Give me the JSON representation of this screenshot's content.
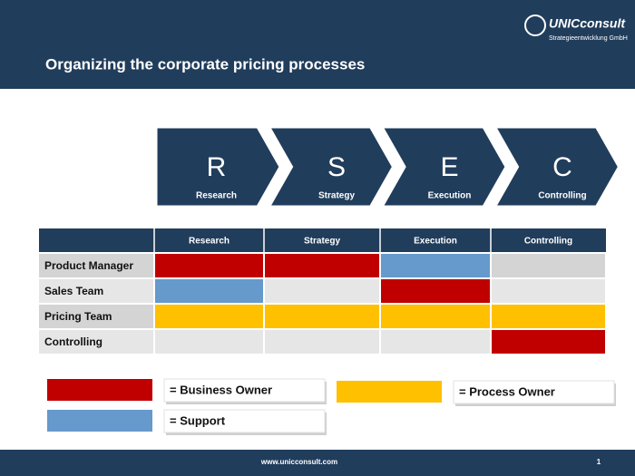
{
  "header": {
    "title": "Organizing the corporate pricing processes",
    "logo": "UNICconsult",
    "logo_subtitle": "Strategieentwicklung GmbH"
  },
  "process": [
    {
      "letter": "R",
      "label": "Research"
    },
    {
      "letter": "S",
      "label": "Strategy"
    },
    {
      "letter": "E",
      "label": "Execution"
    },
    {
      "letter": "C",
      "label": "Controlling"
    }
  ],
  "table": {
    "columns": [
      "Research",
      "Strategy",
      "Execution",
      "Controlling"
    ],
    "rows": [
      {
        "role": "Product Manager",
        "cells": [
          "#c00000",
          "#c00000",
          "#6699cc",
          null
        ]
      },
      {
        "role": "Sales Team",
        "cells": [
          "#6699cc",
          null,
          "#c00000",
          null
        ]
      },
      {
        "role": "Pricing Team",
        "cells": [
          "#ffc000",
          "#ffc000",
          "#ffc000",
          "#ffc000"
        ]
      },
      {
        "role": "Controlling",
        "cells": [
          null,
          null,
          null,
          "#c00000"
        ]
      }
    ]
  },
  "legend": [
    {
      "label": "= Business Owner",
      "color": "#c00000"
    },
    {
      "label": "= Process Owner",
      "color": "#ffc000"
    },
    {
      "label": "= Support",
      "color": "#6699cc"
    }
  ],
  "footer": {
    "url": "www.unicconsult.com",
    "page": "1"
  }
}
